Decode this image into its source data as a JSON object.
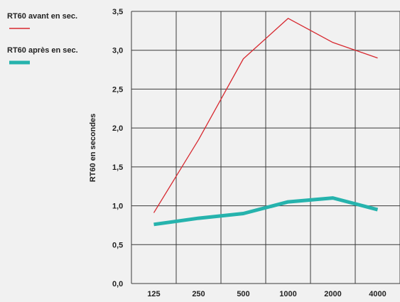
{
  "chart_data": {
    "type": "line",
    "categories": [
      "125",
      "250",
      "500",
      "1000",
      "2000",
      "4000"
    ],
    "ylabel": "RT60 en secondes",
    "xlabel": "",
    "ylim": [
      0,
      3.5
    ],
    "y_ticks": [
      "0,0",
      "0,5",
      "1,0",
      "1,5",
      "2,0",
      "2,5",
      "3,0",
      "3,5"
    ],
    "grid": true,
    "legend_position": "top-left",
    "series": [
      {
        "name": "RT60 avant en sec.",
        "color": "#d7282f",
        "values": [
          0.91,
          1.85,
          2.89,
          3.41,
          3.1,
          2.9
        ]
      },
      {
        "name": "RT60 après en sec.",
        "color": "#26b3ad",
        "values": [
          0.76,
          0.84,
          0.9,
          1.05,
          1.1,
          0.95
        ]
      }
    ]
  }
}
